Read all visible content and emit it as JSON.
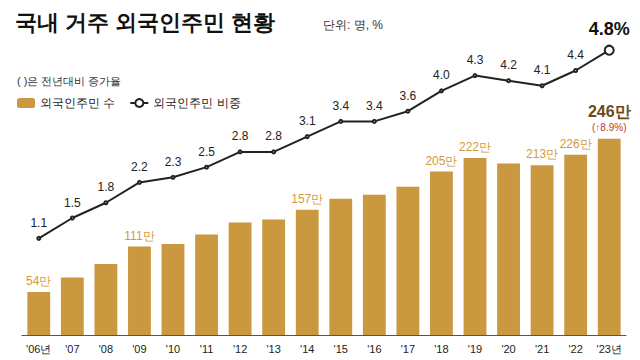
{
  "chart_data": {
    "type": "bar",
    "title": "국내 거주 외국인주민 현황",
    "subtitle": "단위: 명, %",
    "note": "( )은 전년대비 증가율",
    "categories": [
      "'06년",
      "'07",
      "'08",
      "'09",
      "'10",
      "'11",
      "'12",
      "'13",
      "'14",
      "'15",
      "'16",
      "'17",
      "'18",
      "'19",
      "'20",
      "'21",
      "'22",
      "'23년"
    ],
    "series": [
      {
        "name": "외국인주민 수",
        "type": "bar",
        "color": "#c9983f",
        "values": [
          54,
          72,
          89,
          111,
          114,
          126,
          141,
          145,
          157,
          171,
          176,
          186,
          205,
          222,
          215,
          213,
          226,
          246
        ],
        "value_labels": [
          "54만",
          null,
          null,
          "111만",
          null,
          null,
          null,
          null,
          "157만",
          null,
          null,
          null,
          "205만",
          "222만",
          null,
          "213만",
          "226만",
          "246만"
        ]
      },
      {
        "name": "외국인주민 비중",
        "type": "line",
        "axis": "y2",
        "color": "#222222",
        "marker": "circle",
        "line_style": "solid",
        "values": [
          1.1,
          1.5,
          1.8,
          2.2,
          2.3,
          2.5,
          2.8,
          2.8,
          3.1,
          3.4,
          3.4,
          3.6,
          4.0,
          4.3,
          4.2,
          4.1,
          4.4,
          4.8
        ],
        "value_labels": [
          "1.1",
          "1.5",
          "1.8",
          "2.2",
          "2.3",
          "2.5",
          "2.8",
          "2.8",
          "3.1",
          "3.4",
          "3.4",
          "3.6",
          "4.0",
          "4.3",
          "4.2",
          "4.1",
          "4.4",
          "4.8%"
        ]
      }
    ],
    "annotations": [
      {
        "category": "'23년",
        "text": "(↑8.9%)"
      }
    ],
    "ylim": [
      0,
      370
    ],
    "y2lim": [
      -0.8,
      5
    ],
    "data_labels": true,
    "tick_labels": "x",
    "legend": "upper left",
    "grid": false
  }
}
